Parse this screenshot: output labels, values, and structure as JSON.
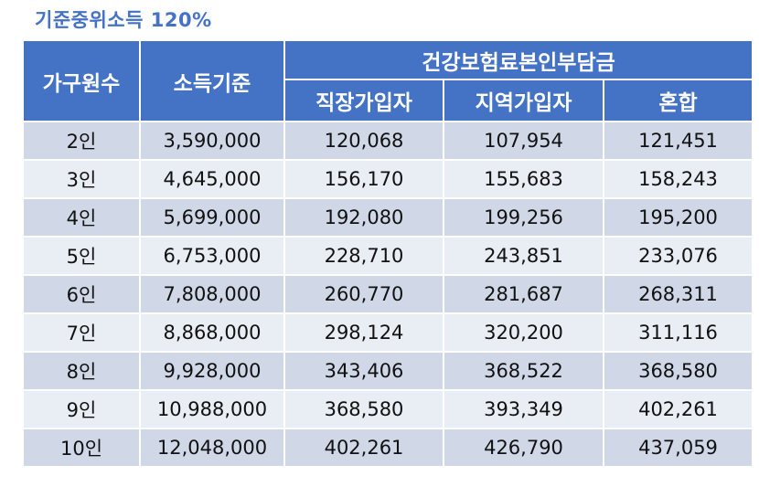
{
  "title": "기준중위소득 120%",
  "header": {
    "household": "가구원수",
    "income": "소득기준",
    "premium_group": "건강보험료본인부담금",
    "employee": "직장가입자",
    "regional": "지역가입자",
    "mixed": "혼합"
  },
  "rows": [
    [
      "2인",
      "3,590,000",
      "120,068",
      "107,954",
      "121,451"
    ],
    [
      "3인",
      "4,645,000",
      "156,170",
      "155,683",
      "158,243"
    ],
    [
      "4인",
      "5,699,000",
      "192,080",
      "199,256",
      "195,200"
    ],
    [
      "5인",
      "6,753,000",
      "228,710",
      "243,851",
      "233,076"
    ],
    [
      "6인",
      "7,808,000",
      "260,770",
      "281,687",
      "268,311"
    ],
    [
      "7인",
      "8,868,000",
      "298,124",
      "320,200",
      "311,116"
    ],
    [
      "8인",
      "9,928,000",
      "343,406",
      "368,522",
      "368,580"
    ],
    [
      "9인",
      "10,988,000",
      "368,580",
      "393,349",
      "402,261"
    ],
    [
      "10인",
      "12,048,000",
      "402,261",
      "426,790",
      "437,059"
    ]
  ]
}
